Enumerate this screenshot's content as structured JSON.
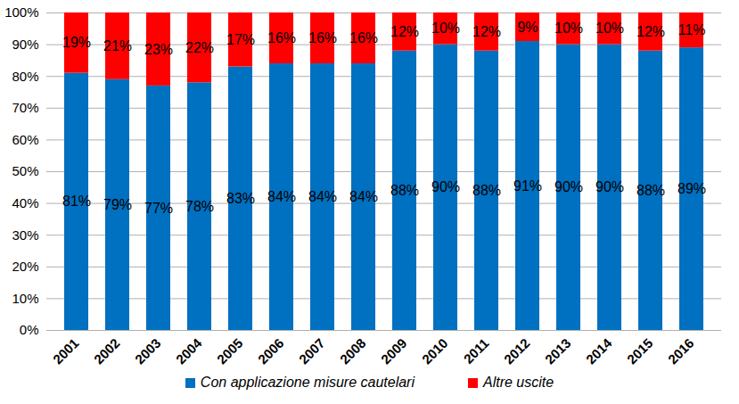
{
  "chart_data": {
    "type": "bar",
    "stacked": true,
    "data_labels": true,
    "grid": true,
    "categories": [
      "2001",
      "2002",
      "2003",
      "2004",
      "2005",
      "2006",
      "2007",
      "2008",
      "2009",
      "2010",
      "2011",
      "2012",
      "2013",
      "2014",
      "2015",
      "2016"
    ],
    "series": [
      {
        "name": "Con applicazione misure cautelari",
        "color": "#0070c0",
        "values": [
          81,
          79,
          77,
          78,
          83,
          84,
          84,
          84,
          88,
          90,
          88,
          91,
          90,
          90,
          88,
          89
        ],
        "value_labels": [
          "81%",
          "79%",
          "77%",
          "78%",
          "83%",
          "84%",
          "84%",
          "84%",
          "88%",
          "90%",
          "88%",
          "91%",
          "90%",
          "90%",
          "88%",
          "89%"
        ]
      },
      {
        "name": "Altre uscite",
        "color": "#ff0000",
        "values": [
          19,
          21,
          23,
          22,
          17,
          16,
          16,
          16,
          12,
          10,
          12,
          9,
          10,
          10,
          12,
          11
        ],
        "value_labels": [
          "19%",
          "21%",
          "23%",
          "22%",
          "17%",
          "16%",
          "16%",
          "16%",
          "12%",
          "10%",
          "12%",
          "9%",
          "10%",
          "10%",
          "12%",
          "11%"
        ]
      }
    ],
    "ylim": [
      0,
      100
    ],
    "yticks": [
      {
        "value": 0,
        "label": "0%"
      },
      {
        "value": 10,
        "label": "10%"
      },
      {
        "value": 20,
        "label": "20%"
      },
      {
        "value": 30,
        "label": "30%"
      },
      {
        "value": 40,
        "label": "40%"
      },
      {
        "value": 50,
        "label": "50%"
      },
      {
        "value": 60,
        "label": "60%"
      },
      {
        "value": 70,
        "label": "70%"
      },
      {
        "value": 80,
        "label": "80%"
      },
      {
        "value": 90,
        "label": "90%"
      },
      {
        "value": 100,
        "label": "100%"
      }
    ],
    "legend": "bottom"
  }
}
